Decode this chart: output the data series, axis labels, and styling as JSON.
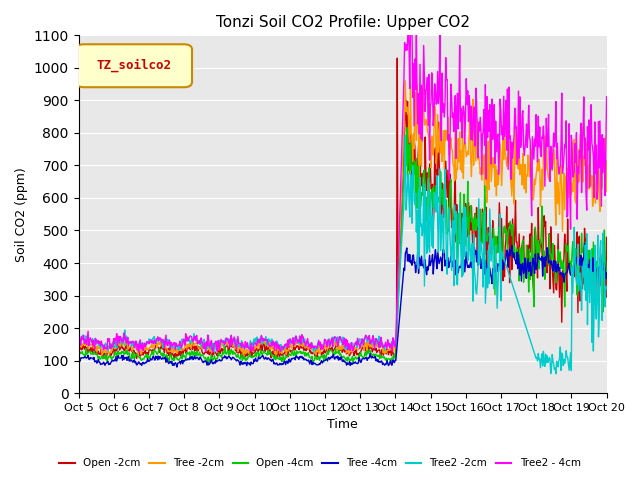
{
  "title": "Tonzi Soil CO2 Profile: Upper CO2",
  "xlabel": "Time",
  "ylabel": "Soil CO2 (ppm)",
  "ylim": [
    0,
    1100
  ],
  "yticks": [
    0,
    100,
    200,
    300,
    400,
    500,
    600,
    700,
    800,
    900,
    1000,
    1100
  ],
  "xtick_labels": [
    "Oct 5",
    "Oct 6",
    "Oct 7",
    "Oct 8",
    "Oct 9",
    "Oct 10",
    "Oct 11",
    "Oct 12",
    "Oct 13",
    "Oct 14",
    "Oct 15",
    "Oct 16",
    "Oct 17",
    "Oct 18",
    "Oct 19",
    "Oct 20"
  ],
  "legend_label": "TZ_soilco2",
  "series_labels": [
    "Open -2cm",
    "Tree -2cm",
    "Open -4cm",
    "Tree -4cm",
    "Tree2 -2cm",
    "Tree2 - 4cm"
  ],
  "series_colors": [
    "#cc0000",
    "#ff9900",
    "#00cc00",
    "#0000cc",
    "#00cccc",
    "#ff00ff"
  ],
  "background_color": "#e8e8e8",
  "n_days": 15,
  "rain_day": 9,
  "pre_rain_base": [
    130,
    140,
    115,
    100,
    155,
    155
  ],
  "pre_rain_noise": [
    15,
    15,
    12,
    8,
    15,
    20
  ],
  "post_rain_peak": [
    800,
    860,
    720,
    410,
    620,
    1030
  ],
  "post_rain_decay": [
    350,
    650,
    370,
    390,
    320,
    720
  ],
  "post_rain_noise": [
    60,
    60,
    50,
    20,
    80,
    80
  ]
}
